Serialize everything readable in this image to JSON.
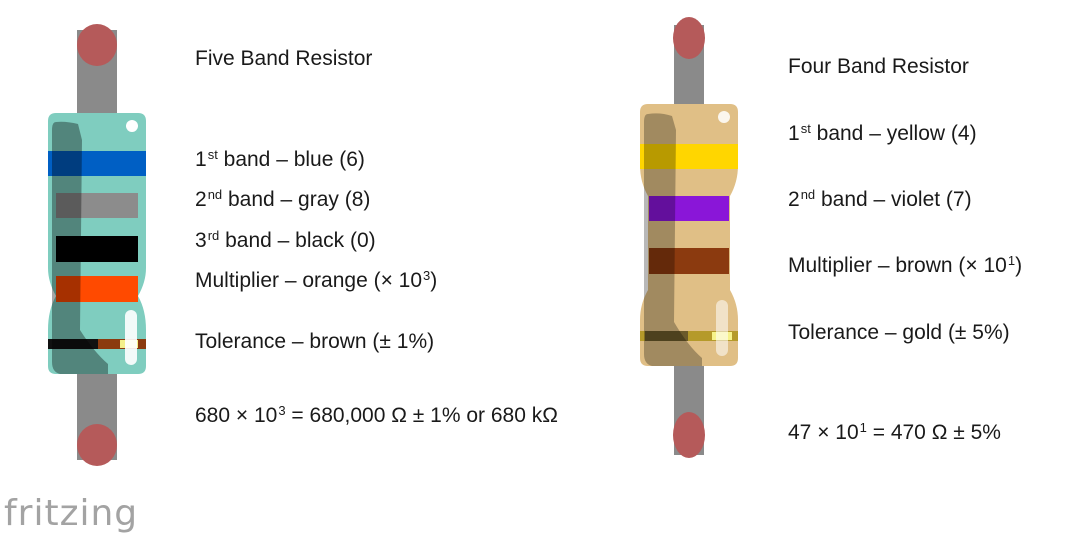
{
  "colors": {
    "lead": "#8a8a8a",
    "lead_cap": "#b55a5a",
    "five_band_body": "#7fcdbf",
    "four_band_body": "#e0bf86"
  },
  "five_band": {
    "title": "Five Band Resistor",
    "band1": {
      "label": "1",
      "sup": "st",
      "text": " band – blue (6)",
      "color": "#005fc4"
    },
    "band2": {
      "label": "2",
      "sup": "nd",
      "text": " band – gray (8)",
      "color": "#8c8c8c"
    },
    "band3": {
      "label": "3",
      "sup": "rd",
      "text": " band – black (0)",
      "color": "#000000"
    },
    "multiplier": {
      "text": "Multiplier – orange (× 10",
      "sup": "3",
      "close": ")",
      "color": "#ff4a00"
    },
    "tolerance": {
      "text": "Tolerance – brown (± 1%)",
      "color": "#8b3a0f"
    },
    "formula": {
      "pre": "680 × 10",
      "sup": "3",
      "post": " = 680,000 Ω ± 1% or 680 kΩ"
    }
  },
  "four_band": {
    "title": "Four Band Resistor",
    "band1": {
      "label": "1",
      "sup": "st",
      "text": " band – yellow (4)",
      "color": "#ffd600"
    },
    "band2": {
      "label": "2",
      "sup": "nd",
      "text": " band – violet (7)",
      "color": "#8a16d8"
    },
    "multiplier": {
      "text": "Multiplier – brown (× 10",
      "sup": "1",
      "close": ")",
      "color": "#8b3a0f"
    },
    "tolerance": {
      "text": "Tolerance – gold (± 5%)",
      "color": "#b59a2a"
    },
    "formula": {
      "pre": "47 × 10",
      "sup": "1",
      "post": " = 470 Ω ± 5%"
    }
  },
  "logo": {
    "text": "fritzing"
  }
}
